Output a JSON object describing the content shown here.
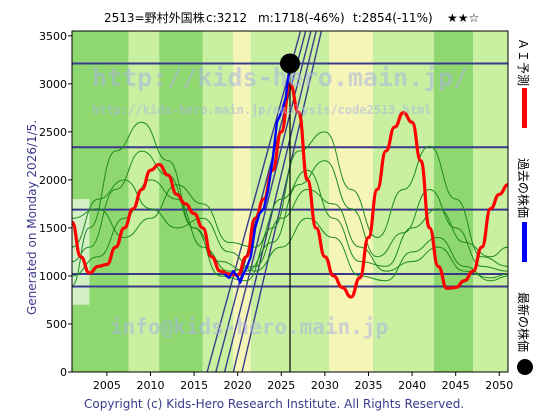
{
  "header": {
    "stock": "2513=野村外国株",
    "current": "c:3212",
    "middle": "m:1718(-46%)",
    "target": "t:2854(-11%)",
    "stars": "★★☆"
  },
  "side_labels": {
    "ai_forecast": "ＡＩ予測",
    "past_price": "過去の株価",
    "latest_price": "最新の株価"
  },
  "generated": "Generated on Monday 2026/1/5.",
  "copyright": "Copyright (c) Kids-Hero Research Institute. All Rights Reserved.",
  "watermarks": {
    "url": "http://kids-hero.main.jp/",
    "analysis": "http://kids-hero.main.jp/analysis/code2513.html",
    "email": "info@kids-hero.main.jp"
  },
  "colors": {
    "forecast": "#ff0000",
    "past": "#0000ff",
    "latest": "#000000",
    "band_green": "#8fd870",
    "band_light": "#c8f0a0",
    "band_yellow": "#f5f5b8",
    "thin_green": "#1f8a1f",
    "hline": "#3a3a8c"
  },
  "chart_data": {
    "type": "line",
    "xlim": [
      2001,
      2051
    ],
    "ylim": [
      0,
      3550
    ],
    "x_ticks": [
      2005,
      2010,
      2015,
      2020,
      2025,
      2030,
      2035,
      2040,
      2045,
      2050
    ],
    "y_ticks": [
      0,
      500,
      1000,
      1500,
      2000,
      2500,
      3000,
      3500
    ],
    "hlines": [
      890,
      1020,
      1690,
      2340,
      3212
    ],
    "now_x": 2026.0,
    "latest_point": {
      "x": 2026.0,
      "y": 3212
    },
    "bands": [
      {
        "x0": 2001.0,
        "x1": 2007.5,
        "kind": "green"
      },
      {
        "x0": 2007.5,
        "x1": 2011.0,
        "kind": "light"
      },
      {
        "x0": 2011.0,
        "x1": 2016.0,
        "kind": "green"
      },
      {
        "x0": 2016.0,
        "x1": 2019.5,
        "kind": "light"
      },
      {
        "x0": 2019.5,
        "x1": 2021.5,
        "kind": "yellow"
      },
      {
        "x0": 2021.5,
        "x1": 2026.0,
        "kind": "light"
      },
      {
        "x0": 2026.0,
        "x1": 2030.5,
        "kind": "light"
      },
      {
        "x0": 2030.5,
        "x1": 2035.5,
        "kind": "yellow"
      },
      {
        "x0": 2035.5,
        "x1": 2042.5,
        "kind": "light"
      },
      {
        "x0": 2042.5,
        "x1": 2047.0,
        "kind": "green"
      },
      {
        "x0": 2047.0,
        "x1": 2051.0,
        "kind": "light"
      }
    ],
    "past_series": {
      "name": "過去の株価",
      "x": [
        2018.5,
        2019.0,
        2019.5,
        2020.0,
        2020.3,
        2020.6,
        2021.0,
        2021.5,
        2022.0,
        2022.5,
        2023.0,
        2023.5,
        2024.0,
        2024.5,
        2025.0,
        2025.5,
        2026.0
      ],
      "y": [
        1020,
        980,
        1050,
        990,
        930,
        1010,
        1080,
        1200,
        1500,
        1650,
        1700,
        1900,
        2200,
        2600,
        2700,
        2850,
        3212
      ]
    },
    "forecast_series": {
      "name": "ＡＩ予測",
      "x": [
        2001.0,
        2002.0,
        2003.0,
        2004.0,
        2005.0,
        2006.0,
        2007.0,
        2008.0,
        2009.0,
        2010.0,
        2011.0,
        2012.0,
        2013.0,
        2014.0,
        2015.0,
        2016.0,
        2017.0,
        2018.0,
        2019.0,
        2020.0,
        2021.0,
        2022.0,
        2023.0,
        2024.0,
        2025.0,
        2026.0,
        2027.0,
        2028.0,
        2029.0,
        2030.0,
        2031.0,
        2032.0,
        2033.0,
        2034.0,
        2035.0,
        2036.0,
        2037.0,
        2038.0,
        2039.0,
        2040.0,
        2041.0,
        2042.0,
        2043.0,
        2044.0,
        2045.0,
        2046.0,
        2047.0,
        2048.0,
        2049.0,
        2050.0,
        2051.0
      ],
      "y": [
        1560,
        1200,
        1030,
        1100,
        1120,
        1300,
        1500,
        1700,
        1900,
        2100,
        2160,
        2050,
        1850,
        1750,
        1650,
        1500,
        1200,
        1050,
        1020,
        1010,
        1200,
        1600,
        1800,
        2100,
        2500,
        3000,
        2700,
        2000,
        1500,
        1200,
        1000,
        880,
        780,
        980,
        1400,
        1900,
        2300,
        2550,
        2700,
        2600,
        2200,
        1500,
        1100,
        870,
        880,
        950,
        1050,
        1300,
        1700,
        1850,
        1950
      ]
    },
    "thin_series": [
      {
        "x": [
          2001,
          2003,
          2006,
          2009,
          2012,
          2015,
          2018,
          2021,
          2024,
          2027,
          2030,
          2033,
          2036,
          2039,
          2042,
          2045,
          2048,
          2051
        ],
        "y": [
          1150,
          1300,
          1900,
          2300,
          2050,
          1500,
          1150,
          1050,
          1350,
          1950,
          2200,
          1700,
          1200,
          1450,
          1900,
          1500,
          1100,
          1050
        ]
      },
      {
        "x": [
          2001,
          2003,
          2006,
          2009,
          2012,
          2015,
          2018,
          2021,
          2024,
          2027,
          2030,
          2033,
          2036,
          2039,
          2042,
          2045,
          2048,
          2051
        ],
        "y": [
          900,
          1500,
          2300,
          2600,
          2200,
          1500,
          1000,
          950,
          1500,
          2300,
          2500,
          1900,
          1400,
          1900,
          2350,
          1800,
          1200,
          1100
        ]
      },
      {
        "x": [
          2001,
          2004,
          2007,
          2010,
          2013,
          2016,
          2019,
          2022,
          2025,
          2028,
          2031,
          2034,
          2037,
          2040,
          2043,
          2046,
          2049,
          2051
        ],
        "y": [
          1600,
          1700,
          1400,
          1600,
          1950,
          1750,
          1350,
          1300,
          1800,
          2100,
          1600,
          1150,
          1100,
          1500,
          1700,
          1350,
          1200,
          1300
        ]
      },
      {
        "x": [
          2001,
          2004,
          2007,
          2010,
          2013,
          2016,
          2019,
          2022,
          2025,
          2028,
          2031,
          2034,
          2037,
          2040,
          2043,
          2046,
          2049,
          2051
        ],
        "y": [
          1300,
          1800,
          2000,
          1700,
          1500,
          1600,
          1250,
          1050,
          1300,
          1600,
          1400,
          1000,
          950,
          1250,
          1400,
          1100,
          950,
          1000
        ]
      },
      {
        "x": [
          2001,
          2004,
          2007,
          2010,
          2013,
          2016,
          2019,
          2022,
          2025,
          2028,
          2031,
          2034,
          2037,
          2040,
          2043,
          2046,
          2049,
          2051
        ],
        "y": [
          1000,
          1200,
          1600,
          2000,
          1800,
          1300,
          1050,
          1100,
          1600,
          1900,
          1750,
          1300,
          1050,
          1150,
          1300,
          1050,
          980,
          1020
        ]
      }
    ],
    "trend_lines": [
      {
        "x0": 2016.5,
        "y0": 0,
        "x1": 2027.2,
        "y1": 3550
      },
      {
        "x0": 2017.5,
        "y0": 0,
        "x1": 2027.8,
        "y1": 3550
      },
      {
        "x0": 2018.5,
        "y0": 0,
        "x1": 2028.4,
        "y1": 3550
      },
      {
        "x0": 2019.5,
        "y0": 0,
        "x1": 2029.0,
        "y1": 3550
      },
      {
        "x0": 2020.5,
        "y0": 0,
        "x1": 2029.6,
        "y1": 3550
      }
    ]
  }
}
